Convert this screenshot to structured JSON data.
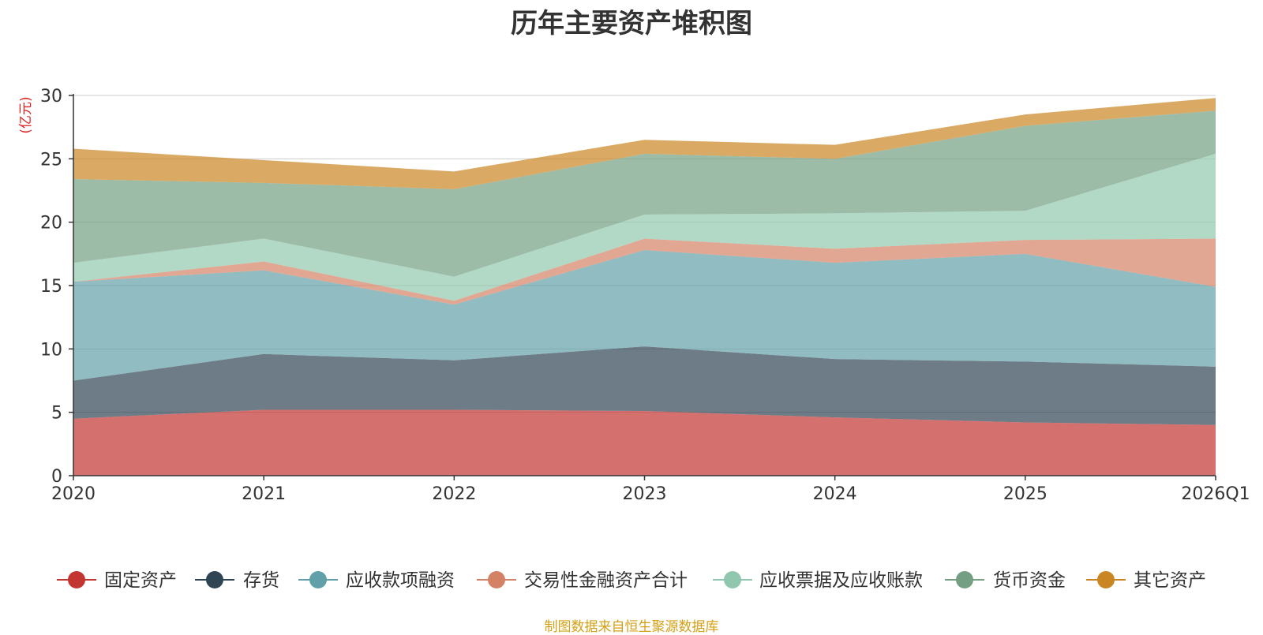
{
  "chart_data": {
    "type": "area",
    "stacked": true,
    "title": "历年主要资产堆积图",
    "ylabel": "(亿元)",
    "xlabel": "",
    "categories": [
      "2020",
      "2021",
      "2022",
      "2023",
      "2024",
      "2025",
      "2026Q1"
    ],
    "ylim": [
      0,
      30
    ],
    "yticks": [
      0,
      5,
      10,
      15,
      20,
      25,
      30
    ],
    "grid": true,
    "legend_position": "bottom",
    "series": [
      {
        "name": "固定资产",
        "color": "#c23531",
        "values": [
          4.5,
          5.2,
          5.2,
          5.1,
          4.6,
          4.2,
          4.0
        ]
      },
      {
        "name": "存货",
        "color": "#2f4554",
        "values": [
          3.0,
          4.4,
          3.9,
          5.1,
          4.6,
          4.8,
          4.6
        ]
      },
      {
        "name": "应收款项融资",
        "color": "#61a0a8",
        "values": [
          7.8,
          6.6,
          4.4,
          7.6,
          7.6,
          8.5,
          6.3
        ]
      },
      {
        "name": "交易性金融资产合计",
        "color": "#d48265",
        "values": [
          0.0,
          0.7,
          0.3,
          0.9,
          1.1,
          1.1,
          3.8
        ]
      },
      {
        "name": "应收票据及应收账款",
        "color": "#91c7ae",
        "values": [
          1.5,
          1.8,
          1.9,
          1.9,
          2.8,
          2.3,
          6.7
        ]
      },
      {
        "name": "货币资金",
        "color": "#749f83",
        "values": [
          6.6,
          4.4,
          6.9,
          4.8,
          4.3,
          6.7,
          3.4
        ]
      },
      {
        "name": "其它资产",
        "color": "#ca8622",
        "values": [
          2.4,
          1.8,
          1.4,
          1.1,
          1.1,
          0.9,
          1.0
        ]
      }
    ]
  },
  "source_note": "制图数据来自恒生聚源数据库"
}
